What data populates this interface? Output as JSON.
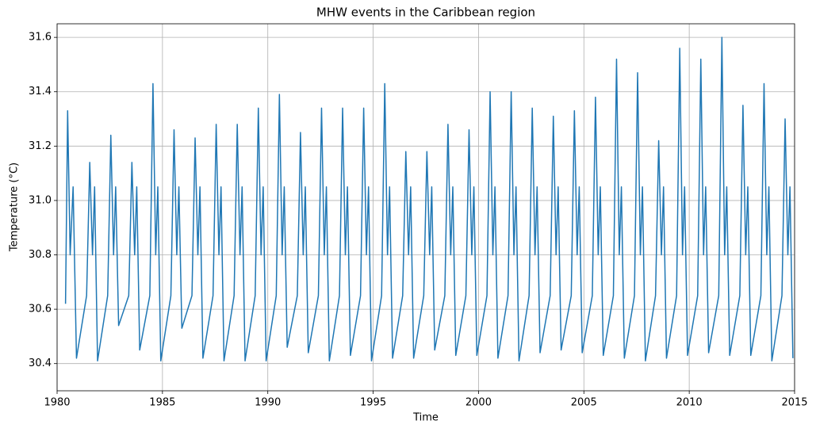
{
  "chart_data": {
    "type": "line",
    "title": "MHW events in the Caribbean region",
    "x_label": "Time",
    "y_label": "Temperature (°C)",
    "xlim": [
      1980,
      2015
    ],
    "ylim": [
      30.3,
      31.65
    ],
    "xticks": [
      1980,
      1985,
      1990,
      1995,
      2000,
      2005,
      2010,
      2015
    ],
    "yticks": [
      30.4,
      30.6,
      30.8,
      {
        "value": 31,
        "label": "31.0"
      },
      31.2,
      31.4,
      31.6
    ],
    "grid": true,
    "series": [
      {
        "color": "#1f77b4",
        "x": [
          1980.4,
          1980.5,
          1980.62,
          1980.76,
          1980.92,
          1981.4,
          1981.55,
          1981.68,
          1981.78,
          1981.92,
          1982.4,
          1982.55,
          1982.68,
          1982.78,
          1982.92,
          1983.4,
          1983.55,
          1983.68,
          1983.78,
          1983.92,
          1984.4,
          1984.55,
          1984.68,
          1984.78,
          1984.92,
          1985.4,
          1985.55,
          1985.68,
          1985.78,
          1985.92,
          1986.4,
          1986.55,
          1986.68,
          1986.78,
          1986.92,
          1987.4,
          1987.55,
          1987.68,
          1987.78,
          1987.92,
          1988.4,
          1988.55,
          1988.68,
          1988.78,
          1988.92,
          1989.4,
          1989.55,
          1989.68,
          1989.78,
          1989.92,
          1990.4,
          1990.55,
          1990.68,
          1990.78,
          1990.92,
          1991.4,
          1991.55,
          1991.68,
          1991.78,
          1991.92,
          1992.4,
          1992.55,
          1992.68,
          1992.78,
          1992.92,
          1993.4,
          1993.55,
          1993.68,
          1993.78,
          1993.92,
          1994.4,
          1994.55,
          1994.68,
          1994.78,
          1994.92,
          1995.4,
          1995.55,
          1995.68,
          1995.78,
          1995.92,
          1996.4,
          1996.55,
          1996.68,
          1996.78,
          1996.92,
          1997.4,
          1997.55,
          1997.68,
          1997.78,
          1997.92,
          1998.4,
          1998.55,
          1998.68,
          1998.78,
          1998.92,
          1999.4,
          1999.55,
          1999.68,
          1999.78,
          1999.92,
          2000.4,
          2000.55,
          2000.68,
          2000.78,
          2000.92,
          2001.4,
          2001.55,
          2001.68,
          2001.78,
          2001.92,
          2002.4,
          2002.55,
          2002.68,
          2002.78,
          2002.92,
          2003.4,
          2003.55,
          2003.68,
          2003.78,
          2003.92,
          2004.4,
          2004.55,
          2004.68,
          2004.78,
          2004.92,
          2005.4,
          2005.55,
          2005.68,
          2005.78,
          2005.92,
          2006.4,
          2006.55,
          2006.68,
          2006.78,
          2006.92,
          2007.4,
          2007.55,
          2007.68,
          2007.78,
          2007.92,
          2008.4,
          2008.55,
          2008.68,
          2008.78,
          2008.92,
          2009.4,
          2009.55,
          2009.68,
          2009.78,
          2009.92,
          2010.4,
          2010.55,
          2010.68,
          2010.78,
          2010.92,
          2011.4,
          2011.55,
          2011.68,
          2011.78,
          2011.92,
          2012.4,
          2012.55,
          2012.68,
          2012.78,
          2012.92,
          2013.4,
          2013.55,
          2013.68,
          2013.78,
          2013.92,
          2014.4,
          2014.55,
          2014.68,
          2014.78,
          2014.92
        ],
        "values": [
          30.62,
          31.33,
          30.8,
          31.05,
          30.42,
          30.65,
          31.14,
          30.8,
          31.05,
          30.41,
          30.65,
          31.24,
          30.8,
          31.05,
          30.54,
          30.65,
          31.14,
          30.8,
          31.05,
          30.45,
          30.65,
          31.43,
          30.8,
          31.05,
          30.41,
          30.65,
          31.26,
          30.8,
          31.05,
          30.53,
          30.65,
          31.23,
          30.8,
          31.05,
          30.42,
          30.65,
          31.28,
          30.8,
          31.05,
          30.41,
          30.65,
          31.28,
          30.8,
          31.05,
          30.41,
          30.65,
          31.34,
          30.8,
          31.05,
          30.41,
          30.65,
          31.39,
          30.8,
          31.05,
          30.46,
          30.65,
          31.25,
          30.8,
          31.05,
          30.44,
          30.65,
          31.34,
          30.8,
          31.05,
          30.41,
          30.65,
          31.34,
          30.8,
          31.05,
          30.43,
          30.65,
          31.34,
          30.8,
          31.05,
          30.41,
          30.65,
          31.43,
          30.8,
          31.05,
          30.42,
          30.65,
          31.18,
          30.8,
          31.05,
          30.42,
          30.65,
          31.18,
          30.8,
          31.05,
          30.45,
          30.65,
          31.28,
          30.8,
          31.05,
          30.43,
          30.65,
          31.26,
          30.8,
          31.05,
          30.43,
          30.65,
          31.4,
          30.8,
          31.05,
          30.42,
          30.65,
          31.4,
          30.8,
          31.05,
          30.41,
          30.65,
          31.34,
          30.8,
          31.05,
          30.44,
          30.65,
          31.31,
          30.8,
          31.05,
          30.45,
          30.65,
          31.33,
          30.8,
          31.05,
          30.44,
          30.65,
          31.38,
          30.8,
          31.05,
          30.43,
          30.65,
          31.52,
          30.8,
          31.05,
          30.42,
          30.65,
          31.47,
          30.8,
          31.05,
          30.41,
          30.65,
          31.22,
          30.8,
          31.05,
          30.42,
          30.65,
          31.56,
          30.8,
          31.05,
          30.43,
          30.65,
          31.52,
          30.8,
          31.05,
          30.44,
          30.65,
          31.6,
          30.8,
          31.05,
          30.43,
          30.65,
          31.35,
          30.8,
          31.05,
          30.43,
          30.65,
          31.43,
          30.8,
          31.05,
          30.41,
          30.65,
          31.3,
          30.8,
          31.05,
          30.42
        ]
      }
    ]
  }
}
